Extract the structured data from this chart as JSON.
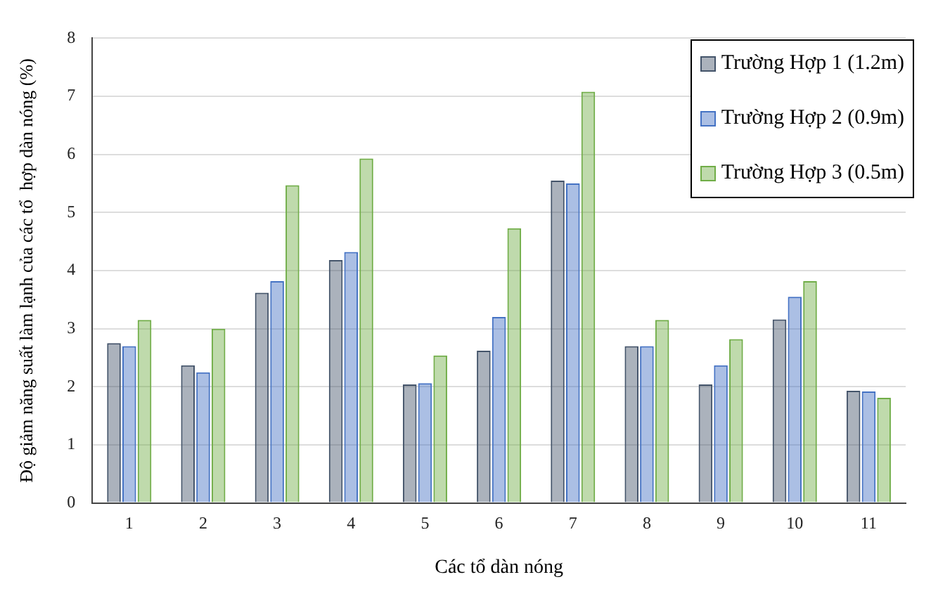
{
  "chart_data": {
    "type": "bar",
    "xlabel": "Các tổ dàn nóng",
    "ylabel": "Độ giảm năng suất làm lạnh của các tổ  hợp dàn nóng (%)",
    "categories": [
      "1",
      "2",
      "3",
      "4",
      "5",
      "6",
      "7",
      "8",
      "9",
      "10",
      "11"
    ],
    "series": [
      {
        "name": "Trường Hợp 1 (1.2m)",
        "color": "#44546a",
        "values": [
          2.75,
          2.37,
          3.62,
          4.18,
          2.04,
          2.62,
          5.55,
          2.7,
          2.04,
          3.16,
          1.93
        ]
      },
      {
        "name": "Trường Hợp 2 (0.9m)",
        "color": "#4472c4",
        "values": [
          2.7,
          2.25,
          3.82,
          4.32,
          2.06,
          3.2,
          5.5,
          2.7,
          2.37,
          3.55,
          1.92
        ]
      },
      {
        "name": "Trường Hợp 3 (0.5m)",
        "color": "#70ad47",
        "values": [
          3.15,
          3.0,
          5.47,
          5.93,
          2.54,
          4.73,
          7.08,
          3.15,
          2.82,
          3.82,
          1.81
        ]
      }
    ],
    "ylim": [
      0,
      8
    ],
    "yticks": [
      0,
      1,
      2,
      3,
      4,
      5,
      6,
      7,
      8
    ],
    "grid": "y",
    "legend": "top right"
  }
}
